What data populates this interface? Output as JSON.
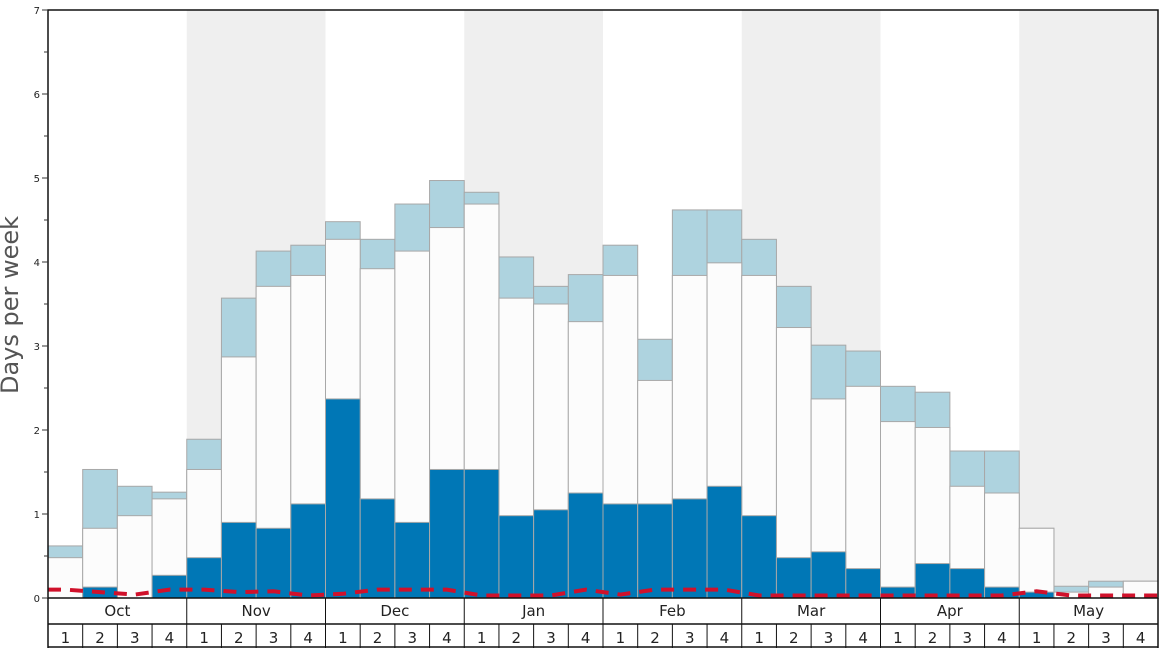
{
  "chart_data": {
    "type": "bar",
    "ylabel": "Days per week",
    "ylim": [
      0,
      7
    ],
    "yticks": [
      0,
      1,
      2,
      3,
      4,
      5,
      6,
      7
    ],
    "months": [
      "Oct",
      "Nov",
      "Dec",
      "Jan",
      "Feb",
      "Mar",
      "Apr",
      "May"
    ],
    "weeks": [
      "1",
      "2",
      "3",
      "4"
    ],
    "series": [
      {
        "color": "#0077b6",
        "values": [
          0.0,
          0.13,
          0.0,
          0.27,
          0.48,
          0.9,
          0.83,
          1.12,
          2.37,
          1.18,
          0.9,
          1.53,
          1.53,
          0.98,
          1.05,
          1.25,
          1.12,
          1.12,
          1.18,
          1.33,
          0.98,
          0.48,
          0.55,
          0.35,
          0.13,
          0.41,
          0.35,
          0.13,
          0.07,
          0.0,
          0.0,
          0.0
        ]
      },
      {
        "color": "#fcfcfc",
        "values": [
          0.48,
          0.83,
          0.98,
          1.18,
          1.53,
          2.87,
          3.71,
          3.84,
          4.27,
          3.92,
          4.13,
          4.41,
          4.69,
          3.57,
          3.5,
          3.29,
          3.84,
          2.59,
          3.84,
          3.99,
          3.84,
          3.22,
          2.37,
          2.52,
          2.1,
          2.03,
          1.33,
          1.25,
          0.83,
          0.07,
          0.13,
          0.2
        ]
      },
      {
        "color": "#aed3df",
        "values": [
          0.62,
          1.53,
          1.33,
          1.26,
          1.89,
          3.57,
          4.13,
          4.2,
          4.48,
          4.27,
          4.69,
          4.97,
          4.83,
          4.06,
          3.71,
          3.85,
          4.2,
          3.08,
          4.62,
          4.62,
          4.27,
          3.71,
          3.01,
          2.94,
          2.52,
          2.45,
          1.75,
          1.75,
          0.83,
          0.14,
          0.2,
          0.2
        ]
      },
      {
        "color": "#d0112b",
        "line": "dashed",
        "values": [
          0.1,
          0.07,
          0.04,
          0.1,
          0.1,
          0.07,
          0.08,
          0.03,
          0.05,
          0.1,
          0.1,
          0.1,
          0.03,
          0.03,
          0.03,
          0.1,
          0.04,
          0.1,
          0.1,
          0.1,
          0.03,
          0.03,
          0.03,
          0.03,
          0.03,
          0.03,
          0.03,
          0.03,
          0.08,
          0.03,
          0.03,
          0.03
        ]
      }
    ],
    "grid": false,
    "legend": "none"
  }
}
